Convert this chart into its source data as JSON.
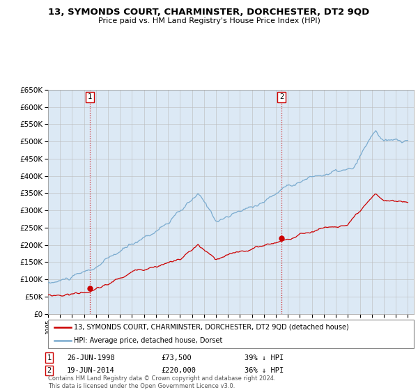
{
  "title": "13, SYMONDS COURT, CHARMINSTER, DORCHESTER, DT2 9QD",
  "subtitle": "Price paid vs. HM Land Registry's House Price Index (HPI)",
  "background_color": "#dce9f5",
  "plot_bg_color": "#dce9f5",
  "sale1_date": 1998.48,
  "sale1_price": 73500,
  "sale2_date": 2014.46,
  "sale2_price": 220000,
  "ylim": [
    0,
    650000
  ],
  "yticks": [
    0,
    50000,
    100000,
    150000,
    200000,
    250000,
    300000,
    350000,
    400000,
    450000,
    500000,
    550000,
    600000,
    650000
  ],
  "legend_red_label": "13, SYMONDS COURT, CHARMINSTER, DORCHESTER, DT2 9QD (detached house)",
  "legend_blue_label": "HPI: Average price, detached house, Dorset",
  "sale1_info": "26-JUN-1998",
  "sale1_price_str": "£73,500",
  "sale1_hpi": "39% ↓ HPI",
  "sale2_info": "19-JUN-2014",
  "sale2_price_str": "£220,000",
  "sale2_hpi": "36% ↓ HPI",
  "footer": "Contains HM Land Registry data © Crown copyright and database right 2024.\nThis data is licensed under the Open Government Licence v3.0.",
  "red_color": "#cc0000",
  "blue_color": "#7aabcf",
  "xlim_left": 1995.0,
  "xlim_right": 2025.5
}
